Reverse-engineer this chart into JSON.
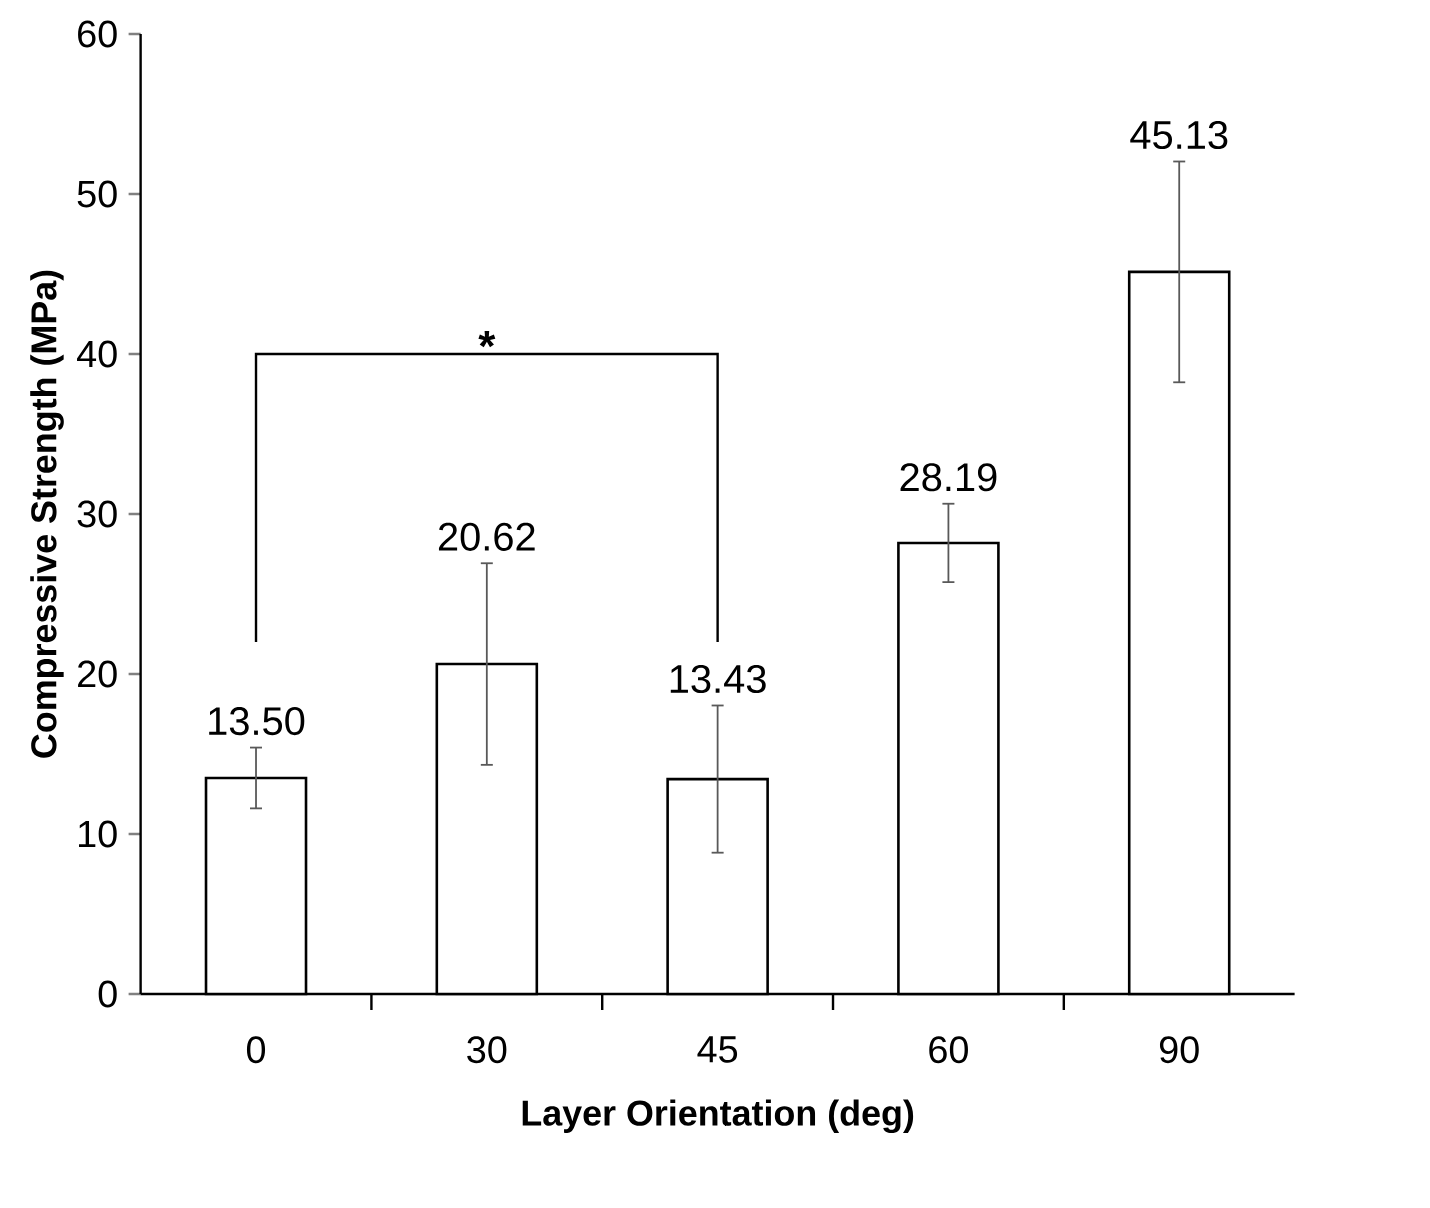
{
  "chart_data": {
    "type": "bar",
    "categories": [
      "0",
      "30",
      "45",
      "60",
      "90"
    ],
    "values": [
      13.5,
      20.62,
      13.43,
      28.19,
      45.13
    ],
    "errors": [
      1.9,
      6.3,
      4.6,
      2.45,
      6.9
    ],
    "value_labels": [
      "13.50",
      "20.62",
      "13.43",
      "28.19",
      "45.13"
    ],
    "color": "#ffffff",
    "ylim": [
      0,
      60
    ],
    "yticks": [
      0,
      10,
      20,
      30,
      40,
      50,
      60
    ],
    "xlabel": "Layer Orientation (deg)",
    "ylabel": "Compressive Strength (MPa)",
    "annotations": [
      "*"
    ]
  }
}
